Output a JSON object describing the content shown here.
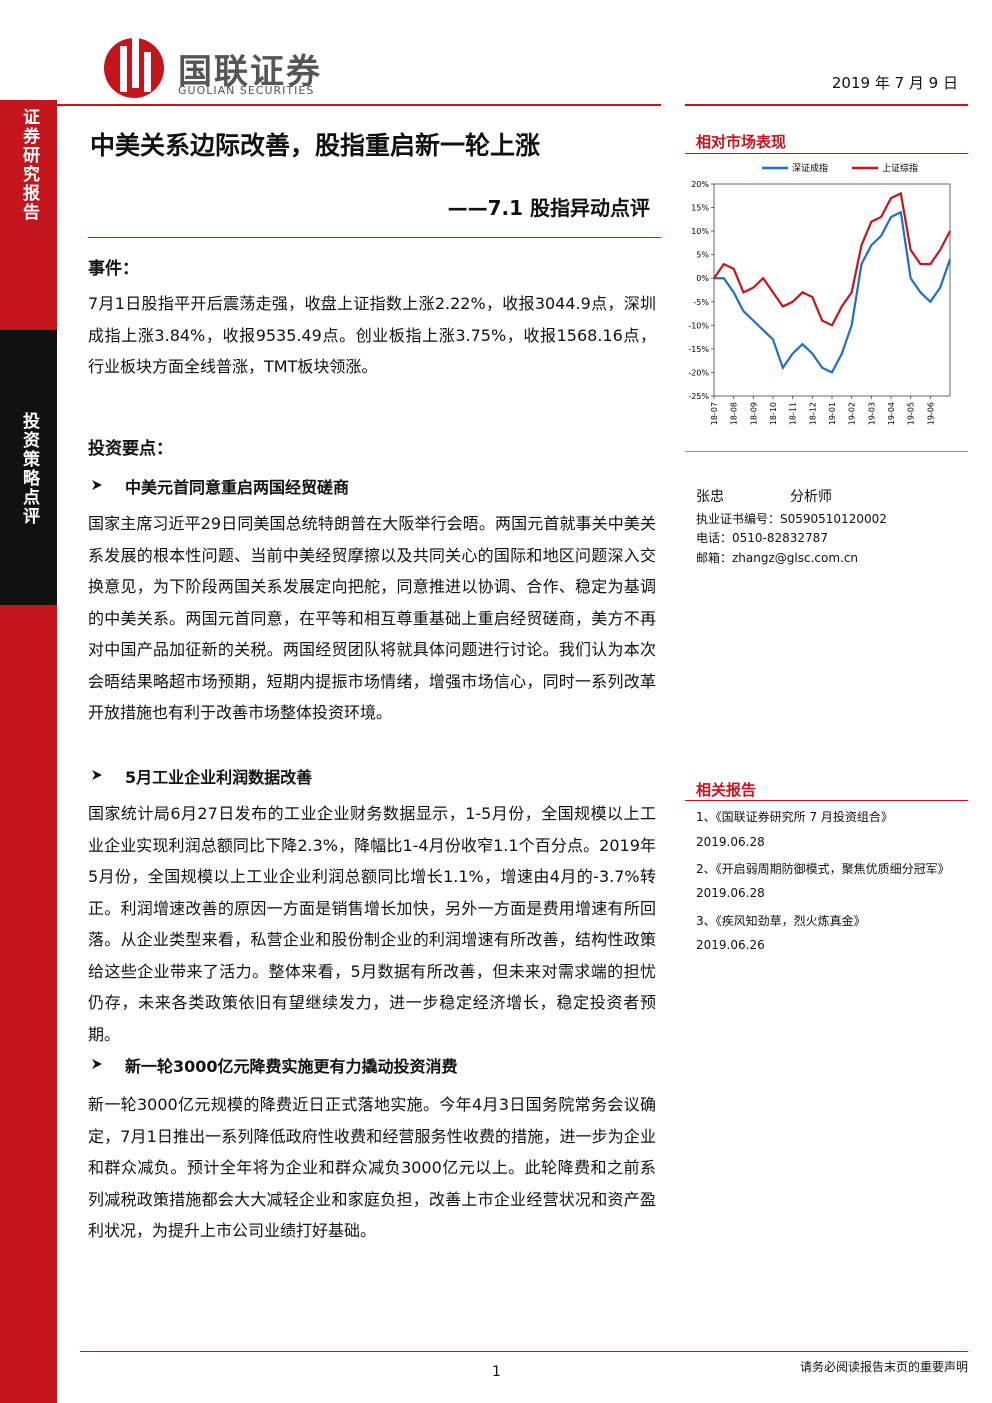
{
  "header": {
    "logo_cn": "国联证券",
    "logo_en": "GUOLIAN SECURITIES",
    "date": "2019 年 7 月 9 日"
  },
  "sidebar": {
    "top": "证券研究报告",
    "bottom": "投资策略点评"
  },
  "title": "中美关系边际改善，股指重启新一轮上涨",
  "subtitle": "——7.1 股指异动点评",
  "event": {
    "heading": "事件：",
    "text": "7月1日股指平开后震荡走强，收盘上证指数上涨2.22%，收报3044.9点，深圳成指上涨3.84%，收报9535.49点。创业板指上涨3.75%，收报1568.16点，行业板块方面全线普涨，TMT板块领涨。"
  },
  "points": {
    "heading": "投资要点：",
    "items": [
      {
        "heading": "中美元首同意重启两国经贸磋商",
        "text": "国家主席习近平29日同美国总统特朗普在大阪举行会晤。两国元首就事关中美关系发展的根本性问题、当前中美经贸摩擦以及共同关心的国际和地区问题深入交换意见，为下阶段两国关系发展定向把舵，同意推进以协调、合作、稳定为基调的中美关系。两国元首同意，在平等和相互尊重基础上重启经贸磋商，美方不再对中国产品加征新的关税。两国经贸团队将就具体问题进行讨论。我们认为本次会晤结果略超市场预期，短期内提振市场情绪，增强市场信心，同时一系列改革开放措施也有利于改善市场整体投资环境。"
      },
      {
        "heading": "5月工业企业利润数据改善",
        "text": "国家统计局6月27日发布的工业企业财务数据显示，1-5月份，全国规模以上工业企业实现利润总额同比下降2.3%，降幅比1-4月份收窄1.1个百分点。2019年5月份，全国规模以上工业企业利润总额同比增长1.1%，增速由4月的-3.7%转正。利润增速改善的原因一方面是销售增长加快，另外一方面是费用增速有所回落。从企业类型来看，私营企业和股份制企业的利润增速有所改善，结构性政策给这些企业带来了活力。整体来看，5月数据有所改善，但未来对需求端的担忧仍存，未来各类政策依旧有望继续发力，进一步稳定经济增长，稳定投资者预期。"
      },
      {
        "heading": "新一轮3000亿元降费实施更有力撬动投资消费",
        "text": "新一轮3000亿元规模的降费近日正式落地实施。今年4月3日国务院常务会议确定，7月1日推出一系列降低政府性收费和经营服务性收费的措施，进一步为企业和群众减负。预计全年将为企业和群众减负3000亿元以上。此轮降费和之前系列减税政策措施都会大大减轻企业和家庭负担，改善上市企业经营状况和资产盈利状况，为提升上市公司业绩打好基础。"
      }
    ]
  },
  "chart_data": {
    "type": "line",
    "title": "相对市场表现",
    "categories": [
      "18-07",
      null,
      "18-08",
      null,
      "18-09",
      null,
      "18-10",
      null,
      "18-11",
      null,
      "18-12",
      null,
      "19-01",
      null,
      "19-02",
      null,
      "19-03",
      null,
      "19-04",
      null,
      "19-05",
      null,
      "19-06",
      null,
      null
    ],
    "series": [
      {
        "name": "深证成指",
        "color": "#1f6fc4",
        "values": [
          0,
          0,
          -3,
          -7,
          -9,
          -11,
          -13,
          -19,
          -16,
          -14,
          -16,
          -19,
          -20,
          -16,
          -10,
          3,
          7,
          9,
          13,
          14,
          0,
          -3,
          -5,
          -2,
          4
        ]
      },
      {
        "name": "上证综指",
        "color": "#c4141c",
        "values": [
          0,
          3,
          2,
          -3,
          -2,
          0,
          -3,
          -6,
          -5,
          -3,
          -4,
          -9,
          -10,
          -6,
          -3,
          7,
          12,
          13,
          17,
          18,
          6,
          3,
          3,
          6,
          10
        ]
      }
    ],
    "ylim": [
      -25,
      20
    ],
    "yticks": [
      {
        "value": -25,
        "label": "-25%"
      },
      {
        "value": -20,
        "label": "-20%"
      },
      {
        "value": -15,
        "label": "-15%"
      },
      {
        "value": -10,
        "label": "-10%"
      },
      {
        "value": -5,
        "label": "-5%"
      },
      {
        "value": 0,
        "label": "0%"
      },
      {
        "value": 5,
        "label": "5%"
      },
      {
        "value": 10,
        "label": "10%"
      },
      {
        "value": 15,
        "label": "15%"
      },
      {
        "value": 20,
        "label": "20%"
      }
    ],
    "legend": "top"
  },
  "analyst": {
    "name": "张忠",
    "role": "分析师",
    "cert": "执业证书编号：S0590510120002",
    "phone": "电话：0510-82832787",
    "email": "邮箱：zhangz@glsc.com.cn"
  },
  "related": {
    "heading": "相关报告",
    "items": [
      {
        "title": "1、《国联证券研究所 7 月投资组合》",
        "date": "2019.06.28"
      },
      {
        "title": "2、《开启弱周期防御模式，聚焦优质细分冠军》",
        "date": "2019.06.28"
      },
      {
        "title": "3、《疾风知劲草，烈火炼真金》",
        "date": "2019.06.26"
      }
    ]
  },
  "footer": {
    "page": "1",
    "disclaimer": "请务必阅读报告末页的重要声明"
  }
}
